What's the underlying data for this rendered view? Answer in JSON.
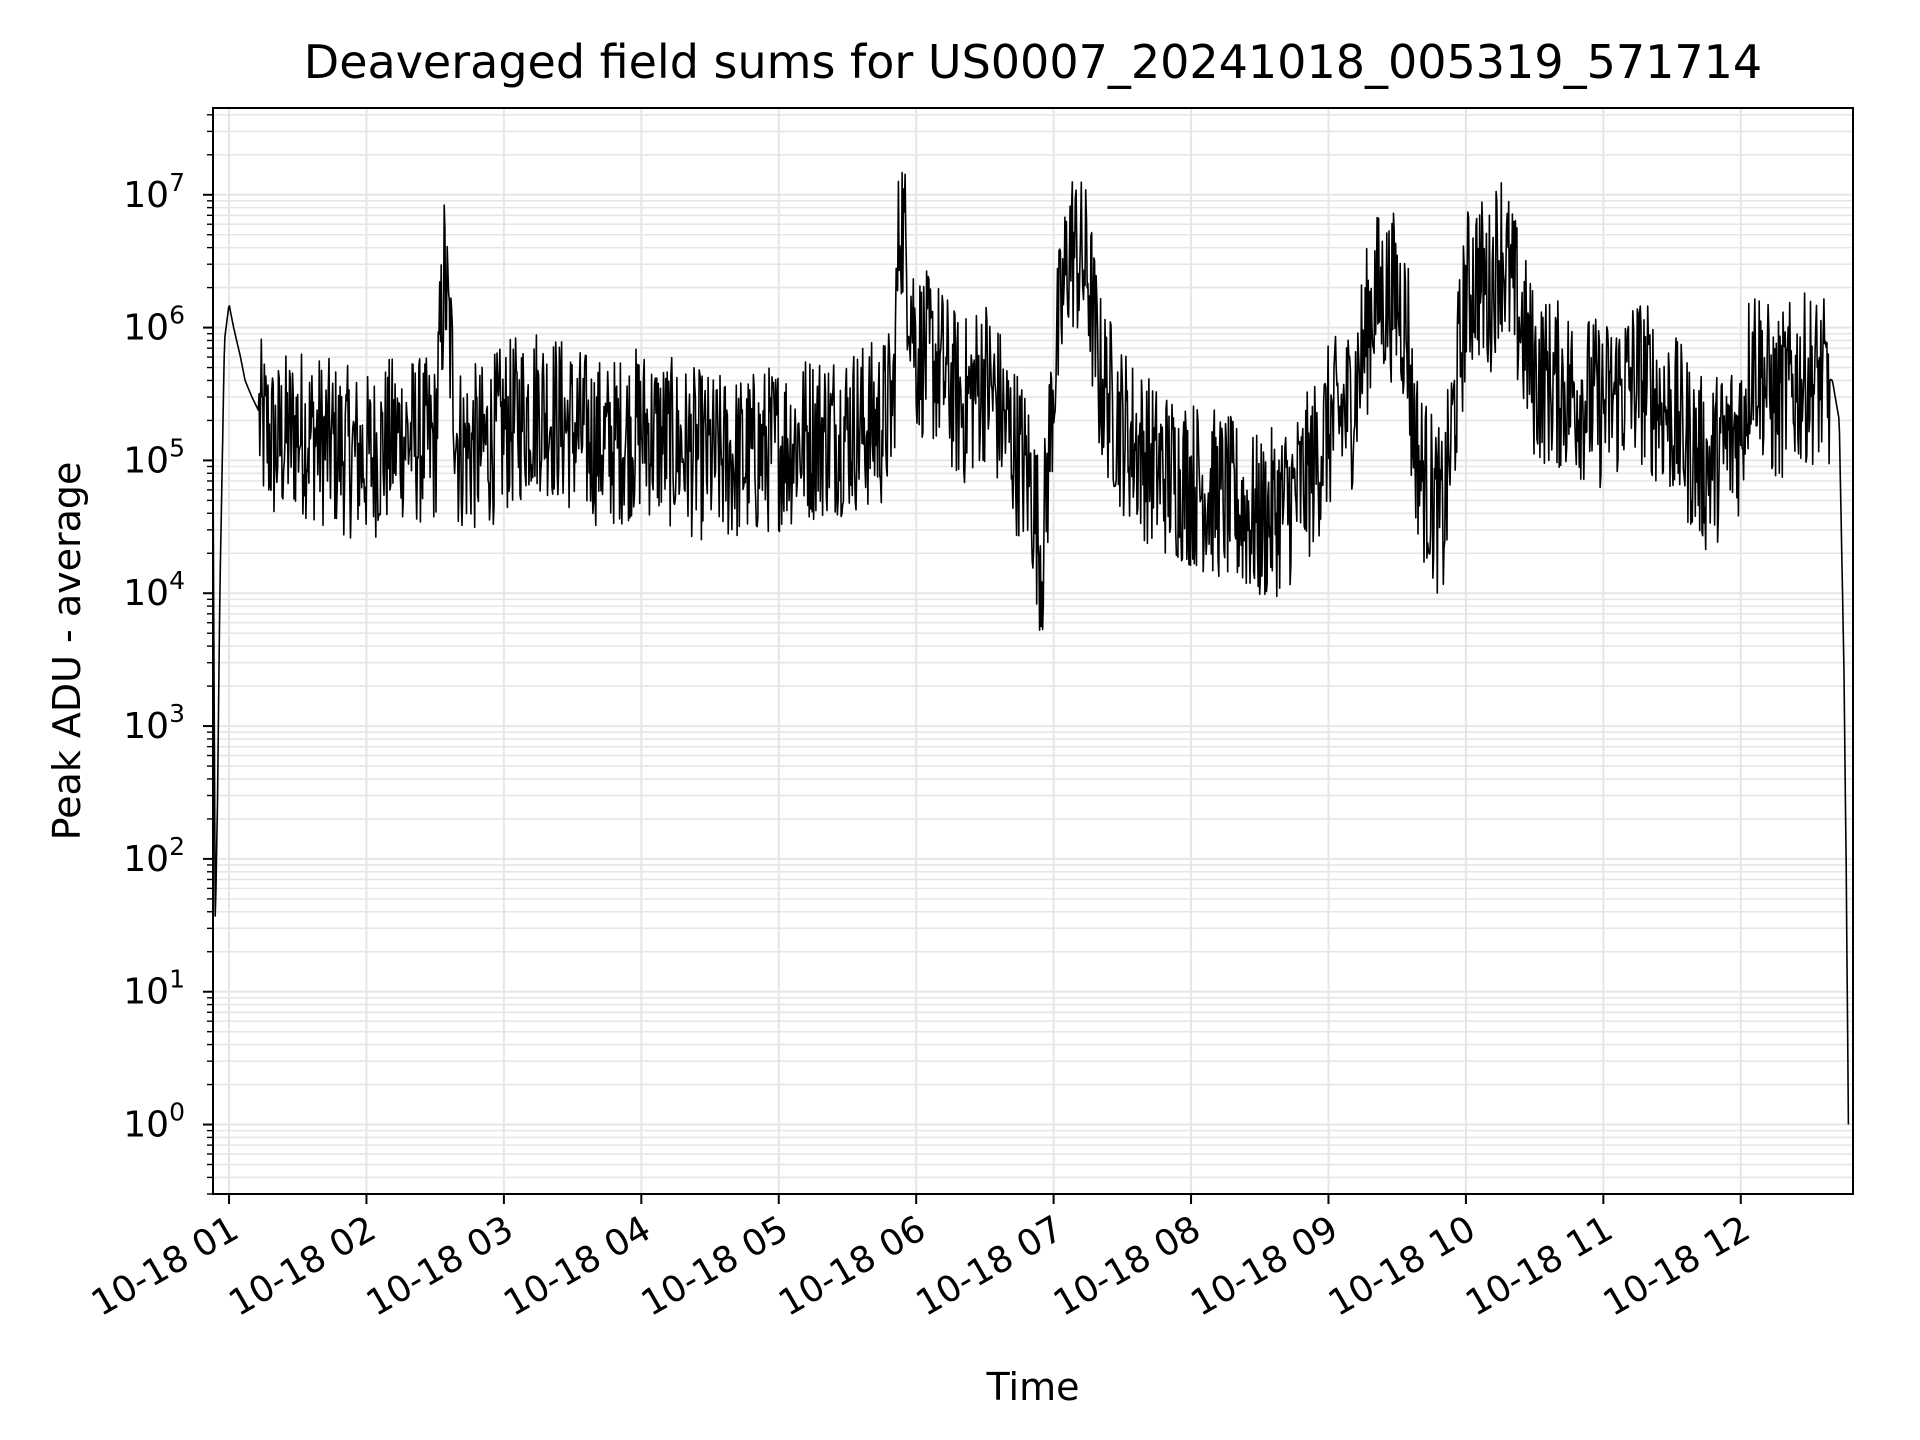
{
  "chart_data": {
    "type": "line",
    "title": "Deaveraged field sums for US0007_20241018_005319_571714",
    "xlabel": "Time",
    "ylabel": "Peak ADU - average",
    "yscale": "log",
    "ylim": [
      0.3,
      45000000
    ],
    "xlim": [
      "2024-10-18T00:53",
      "2024-10-18T12:49"
    ],
    "grid": true,
    "x_ticks": [
      {
        "label": "10-18 01",
        "t": "2024-10-18T01:00"
      },
      {
        "label": "10-18 02",
        "t": "2024-10-18T02:00"
      },
      {
        "label": "10-18 03",
        "t": "2024-10-18T03:00"
      },
      {
        "label": "10-18 04",
        "t": "2024-10-18T04:00"
      },
      {
        "label": "10-18 05",
        "t": "2024-10-18T05:00"
      },
      {
        "label": "10-18 06",
        "t": "2024-10-18T06:00"
      },
      {
        "label": "10-18 07",
        "t": "2024-10-18T07:00"
      },
      {
        "label": "10-18 08",
        "t": "2024-10-18T08:00"
      },
      {
        "label": "10-18 09",
        "t": "2024-10-18T09:00"
      },
      {
        "label": "10-18 10",
        "t": "2024-10-18T10:00"
      },
      {
        "label": "10-18 11",
        "t": "2024-10-18T11:00"
      },
      {
        "label": "10-18 12",
        "t": "2024-10-18T12:00"
      }
    ],
    "y_ticks": [
      {
        "base": "10",
        "exp": "0",
        "value": 1
      },
      {
        "base": "10",
        "exp": "1",
        "value": 10
      },
      {
        "base": "10",
        "exp": "2",
        "value": 100
      },
      {
        "base": "10",
        "exp": "3",
        "value": 1000
      },
      {
        "base": "10",
        "exp": "4",
        "value": 10000
      },
      {
        "base": "10",
        "exp": "5",
        "value": 100000
      },
      {
        "base": "10",
        "exp": "6",
        "value": 1000000
      },
      {
        "base": "10",
        "exp": "7",
        "value": 10000000
      }
    ],
    "line_color": "#000000",
    "grid_color": "#e6e6e6",
    "series": [
      {
        "name": "",
        "x": [
          "2024-10-18T00:53",
          "2024-10-18T00:54",
          "2024-10-18T00:55",
          "2024-10-18T00:56",
          "2024-10-18T00:58",
          "2024-10-18T01:00",
          "2024-10-18T01:02",
          "2024-10-18T01:05",
          "2024-10-18T01:07",
          "2024-10-18T01:10",
          "2024-10-18T01:15",
          "2024-10-18T01:20",
          "2024-10-18T01:30",
          "2024-10-18T01:45",
          "2024-10-18T02:00",
          "2024-10-18T02:15",
          "2024-10-18T02:30",
          "2024-10-18T02:34",
          "2024-10-18T02:40",
          "2024-10-18T02:50",
          "2024-10-18T03:00",
          "2024-10-18T03:15",
          "2024-10-18T03:30",
          "2024-10-18T03:45",
          "2024-10-18T04:00",
          "2024-10-18T04:15",
          "2024-10-18T04:30",
          "2024-10-18T04:45",
          "2024-10-18T05:00",
          "2024-10-18T05:15",
          "2024-10-18T05:30",
          "2024-10-18T05:45",
          "2024-10-18T05:50",
          "2024-10-18T05:53",
          "2024-10-18T05:55",
          "2024-10-18T06:00",
          "2024-10-18T06:10",
          "2024-10-18T06:20",
          "2024-10-18T06:30",
          "2024-10-18T06:40",
          "2024-10-18T06:50",
          "2024-10-18T06:55",
          "2024-10-18T07:00",
          "2024-10-18T07:07",
          "2024-10-18T07:15",
          "2024-10-18T07:20",
          "2024-10-18T07:30",
          "2024-10-18T07:45",
          "2024-10-18T08:00",
          "2024-10-18T08:15",
          "2024-10-18T08:30",
          "2024-10-18T08:45",
          "2024-10-18T08:53",
          "2024-10-18T09:00",
          "2024-10-18T09:10",
          "2024-10-18T09:20",
          "2024-10-18T09:30",
          "2024-10-18T09:35",
          "2024-10-18T09:36",
          "2024-10-18T09:40",
          "2024-10-18T09:50",
          "2024-10-18T10:00",
          "2024-10-18T10:05",
          "2024-10-18T10:10",
          "2024-10-18T10:15",
          "2024-10-18T10:30",
          "2024-10-18T10:45",
          "2024-10-18T11:00",
          "2024-10-18T11:15",
          "2024-10-18T11:30",
          "2024-10-18T11:45",
          "2024-10-18T12:00",
          "2024-10-18T12:05",
          "2024-10-18T12:10",
          "2024-10-18T12:15",
          "2024-10-18T12:20",
          "2024-10-18T12:30",
          "2024-10-18T12:40",
          "2024-10-18T12:43",
          "2024-10-18T12:45",
          "2024-10-18T12:46",
          "2024-10-18T12:47"
        ],
        "y": [
          100000,
          30,
          300,
          10000,
          800000,
          1500000,
          1000000,
          600000,
          400000,
          300000,
          200000,
          150000,
          200000,
          150000,
          120000,
          180000,
          150000,
          3000000,
          150000,
          140000,
          200000,
          300000,
          200000,
          150000,
          200000,
          150000,
          120000,
          120000,
          150000,
          180000,
          200000,
          220000,
          300000,
          10000000,
          5000000,
          800000,
          600000,
          300000,
          500000,
          200000,
          80000,
          20000,
          500000,
          5000000,
          3000000,
          500000,
          200000,
          100000,
          80000,
          60000,
          40000,
          60000,
          100000,
          200000,
          300000,
          2000000,
          2000000,
          1000000,
          300000,
          100000,
          40000,
          2000000,
          3000000,
          2000000,
          5000000,
          500000,
          400000,
          300000,
          500000,
          250000,
          100000,
          200000,
          800000,
          500000,
          300000,
          400000,
          500000,
          400000,
          200000,
          3000,
          100,
          1
        ]
      }
    ]
  }
}
